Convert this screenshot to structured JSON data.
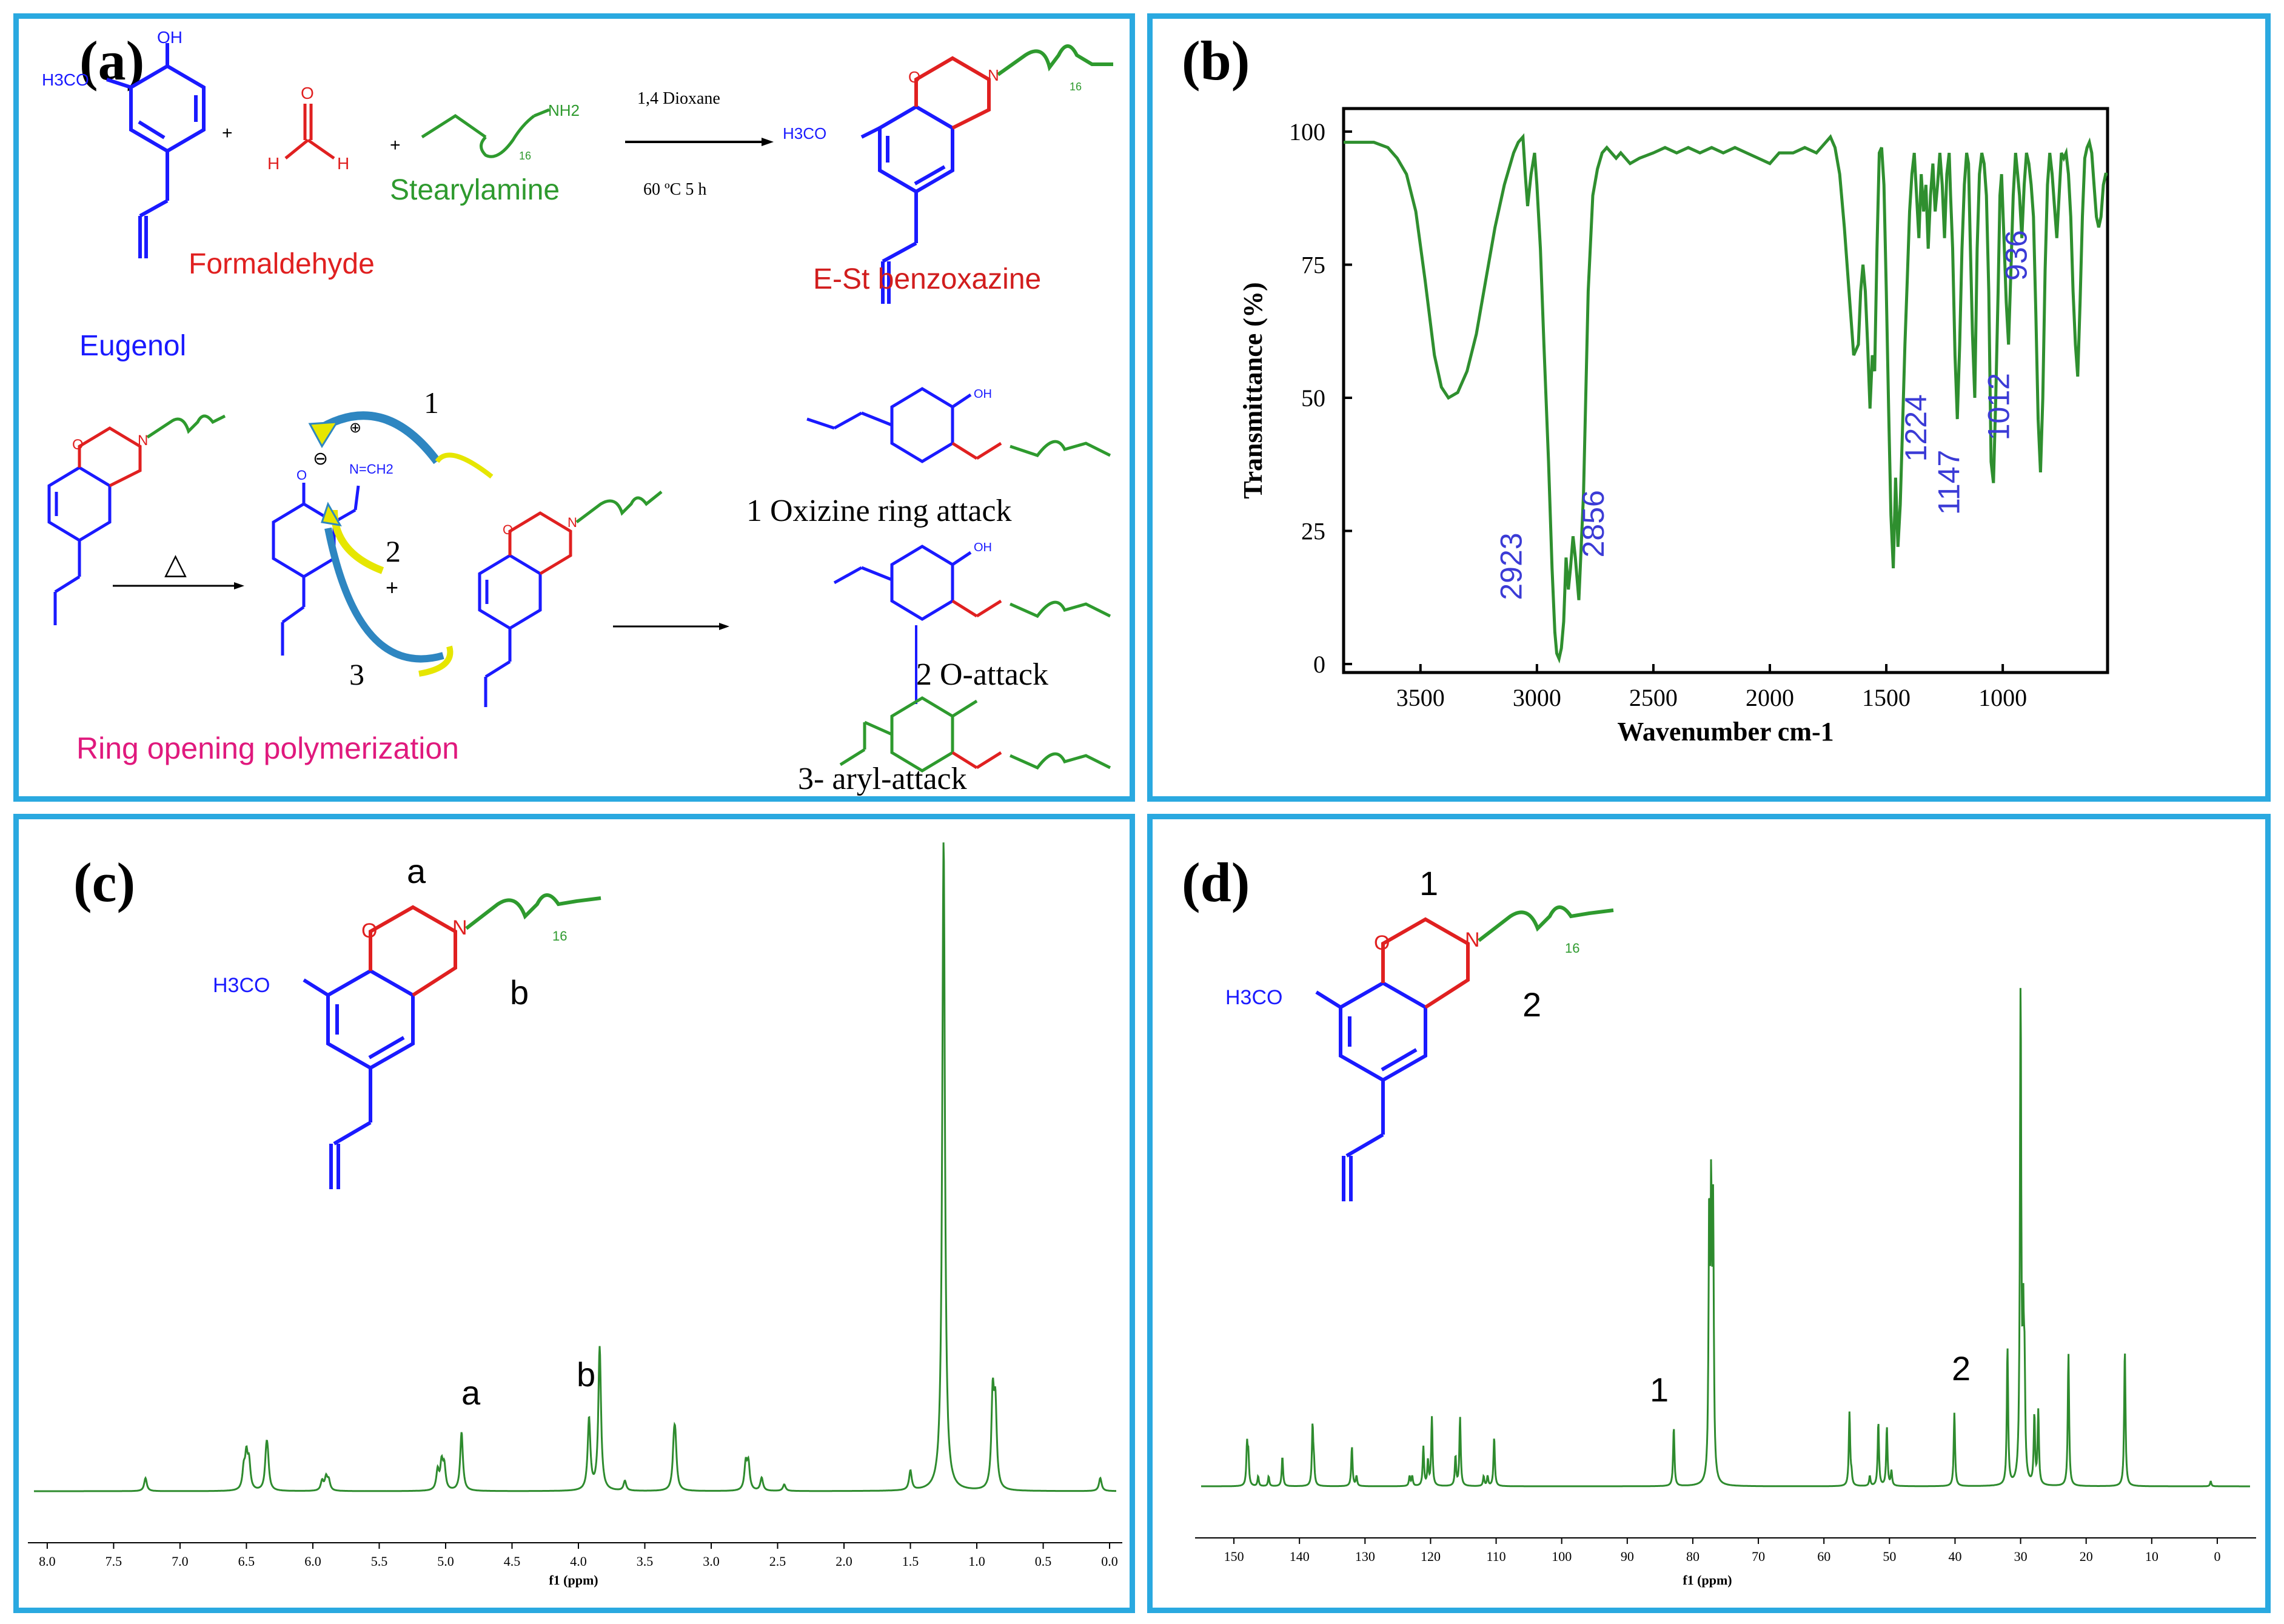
{
  "colors": {
    "border": "#2aa9e0",
    "eugenol": "#1a1aff",
    "formaldehyde": "#e02020",
    "amine": "#2e9a2e",
    "product": "#d11d1d",
    "rop": "#e0197d",
    "nmr": "#2e8b2e",
    "ir": "#2f8f2f",
    "ir_label": "#3b3bd6",
    "arrow_fill": "#e6e600"
  },
  "panels": {
    "a": {
      "label": "(a)",
      "reactants": {
        "eugenol": "Eugenol",
        "formaldehyde": "Formaldehyde",
        "stearylamine": "Stearylamine",
        "oh": "OH",
        "h3co": "H3CO",
        "nh2": "NH2",
        "sub16": "16",
        "h_left": "H",
        "h_right": "H",
        "o": "O",
        "plus1": "+",
        "plus2": "+"
      },
      "conditions": {
        "solvent": "1,4 Dioxane",
        "temp": "60 ºC 5 h"
      },
      "product": "E-St benzoxazine",
      "rop_title": "Ring opening polymerization",
      "heat": "△",
      "arrow_numbers": [
        "1",
        "2",
        "3"
      ],
      "attacks": {
        "one": "1 Oxizine ring attack",
        "two": "2 O-attack",
        "three": "3- aryl-attack"
      },
      "charges": {
        "minus": "⊖",
        "plus": "⊕",
        "plus_sign": "+"
      },
      "atoms": {
        "o": "O",
        "n": "N",
        "oh": "OH",
        "nh": "N",
        "ch2": "N=CH2"
      }
    },
    "b": {
      "label": "(b)",
      "peaks": [
        "2923",
        "2856",
        "1224",
        "1147",
        "1012",
        "936"
      ]
    },
    "c": {
      "label": "(c)",
      "struct": {
        "a": "a",
        "b": "b",
        "o": "O",
        "n": "N",
        "h3co": "H3CO",
        "sub16": "16"
      },
      "peak_labels": [
        "a",
        "b"
      ]
    },
    "d": {
      "label": "(d)",
      "struct": {
        "one": "1",
        "two": "2",
        "o": "O",
        "n": "N",
        "h3co": "H3CO",
        "sub16": "16"
      },
      "peak_labels": [
        "1",
        "2"
      ]
    }
  },
  "chart_data": [
    {
      "type": "line",
      "panel": "b",
      "xlabel": "Wavenumber cm-1",
      "ylabel": "Transmittance (%)",
      "xlim": [
        3830,
        550
      ],
      "ylim": [
        0,
        100
      ],
      "x_reversed": true,
      "xticks": [
        3500,
        3000,
        2500,
        2000,
        1500,
        1000
      ],
      "yticks": [
        0,
        25,
        50,
        75,
        100
      ],
      "series": [
        {
          "x": [
            3830,
            3700,
            3640,
            3600,
            3560,
            3520,
            3480,
            3440,
            3410,
            3380,
            3340,
            3300,
            3260,
            3220,
            3180,
            3140,
            3100,
            3080,
            3060,
            3050,
            3040,
            3025,
            3010,
            3000,
            2985,
            2970,
            2950,
            2935,
            2923,
            2915,
            2905,
            2895,
            2885,
            2875,
            2865,
            2856,
            2845,
            2835,
            2820,
            2800,
            2780,
            2760,
            2740,
            2720,
            2700,
            2680,
            2660,
            2640,
            2620,
            2600,
            2560,
            2500,
            2450,
            2400,
            2350,
            2300,
            2250,
            2200,
            2150,
            2100,
            2050,
            2000,
            1980,
            1960,
            1900,
            1850,
            1800,
            1760,
            1740,
            1720,
            1700,
            1680,
            1660,
            1640,
            1620,
            1610,
            1600,
            1590,
            1580,
            1570,
            1560,
            1550,
            1540,
            1530,
            1520,
            1510,
            1500,
            1490,
            1480,
            1470,
            1460,
            1450,
            1440,
            1430,
            1420,
            1410,
            1400,
            1390,
            1380,
            1370,
            1360,
            1350,
            1340,
            1330,
            1320,
            1310,
            1300,
            1290,
            1280,
            1270,
            1260,
            1250,
            1240,
            1230,
            1224,
            1215,
            1205,
            1195,
            1185,
            1175,
            1165,
            1155,
            1147,
            1140,
            1130,
            1120,
            1110,
            1100,
            1090,
            1080,
            1070,
            1060,
            1050,
            1040,
            1030,
            1020,
            1012,
            1005,
            995,
            985,
            975,
            965,
            955,
            945,
            936,
            928,
            918,
            908,
            898,
            888,
            878,
            868,
            858,
            848,
            838,
            828,
            818,
            808,
            798,
            788,
            778,
            768,
            758,
            748,
            738,
            728,
            718,
            708,
            698,
            688,
            678,
            668,
            658,
            648,
            638,
            628,
            618,
            608,
            598,
            588,
            578,
            568,
            558,
            550
          ],
          "y": [
            98,
            98,
            97,
            95,
            92,
            85,
            72,
            58,
            52,
            50,
            51,
            55,
            62,
            72,
            82,
            90,
            96,
            98,
            99,
            92,
            86,
            92,
            96,
            90,
            78,
            60,
            38,
            18,
            6,
            2,
            1,
            3,
            8,
            20,
            14,
            18,
            24,
            20,
            12,
            32,
            70,
            88,
            93,
            96,
            97,
            96,
            95,
            96,
            95,
            94,
            95,
            96,
            97,
            96,
            97,
            96,
            97,
            96,
            97,
            96,
            95,
            94,
            95,
            96,
            96,
            97,
            96,
            98,
            99,
            97,
            92,
            82,
            70,
            58,
            60,
            70,
            75,
            70,
            60,
            48,
            58,
            55,
            78,
            96,
            97,
            90,
            70,
            48,
            28,
            18,
            35,
            22,
            30,
            45,
            60,
            72,
            85,
            92,
            96,
            88,
            80,
            92,
            85,
            90,
            78,
            88,
            94,
            85,
            90,
            96,
            90,
            80,
            92,
            96,
            88,
            78,
            58,
            46,
            60,
            78,
            90,
            96,
            94,
            80,
            62,
            50,
            78,
            92,
            96,
            94,
            88,
            70,
            38,
            34,
            50,
            70,
            88,
            92,
            80,
            68,
            60,
            74,
            88,
            96,
            92,
            88,
            80,
            90,
            96,
            94,
            90,
            84,
            66,
            46,
            36,
            50,
            74,
            90,
            96,
            92,
            86,
            80,
            88,
            96,
            95,
            96,
            92,
            84,
            70,
            60,
            54,
            68,
            84,
            95,
            97,
            98,
            96,
            90,
            84,
            82,
            84,
            90,
            92,
            92
          ]
        }
      ]
    },
    {
      "type": "line",
      "panel": "c",
      "xlabel": "f1 (ppm)",
      "xlim": [
        8.1,
        -0.05
      ],
      "x_reversed": true,
      "xticks": [
        "8.0",
        "7.5",
        "7.0",
        "6.5",
        "6.0",
        "5.5",
        "5.0",
        "4.5",
        "4.0",
        "3.5",
        "3.0",
        "2.5",
        "2.0",
        "1.5",
        "1.0",
        "0.5",
        "0.0"
      ],
      "peaks": [
        {
          "x": 7.26,
          "h": 0.02
        },
        {
          "x": 6.52,
          "h": 0.03
        },
        {
          "x": 6.5,
          "h": 0.05
        },
        {
          "x": 6.48,
          "h": 0.04
        },
        {
          "x": 6.35,
          "h": 0.05
        },
        {
          "x": 6.34,
          "h": 0.04
        },
        {
          "x": 5.93,
          "h": 0.015
        },
        {
          "x": 5.9,
          "h": 0.02
        },
        {
          "x": 5.88,
          "h": 0.015
        },
        {
          "x": 5.06,
          "h": 0.03
        },
        {
          "x": 5.03,
          "h": 0.04
        },
        {
          "x": 5.01,
          "h": 0.035
        },
        {
          "x": 4.88,
          "h": 0.09
        },
        {
          "x": 3.92,
          "h": 0.11
        },
        {
          "x": 3.84,
          "h": 0.22
        },
        {
          "x": 3.65,
          "h": 0.015
        },
        {
          "x": 3.28,
          "h": 0.06
        },
        {
          "x": 3.27,
          "h": 0.06
        },
        {
          "x": 2.74,
          "h": 0.04
        },
        {
          "x": 2.72,
          "h": 0.04
        },
        {
          "x": 2.62,
          "h": 0.02
        },
        {
          "x": 2.45,
          "h": 0.01
        },
        {
          "x": 1.5,
          "h": 0.03
        },
        {
          "x": 1.25,
          "h": 1.0
        },
        {
          "x": 0.88,
          "h": 0.14
        },
        {
          "x": 0.86,
          "h": 0.12
        },
        {
          "x": 0.07,
          "h": 0.02
        }
      ]
    },
    {
      "type": "line",
      "panel": "d",
      "xlabel": "f1 (ppm)",
      "xlim": [
        155,
        -5
      ],
      "x_reversed": true,
      "xticks": [
        "150",
        "140",
        "130",
        "120",
        "110",
        "100",
        "90",
        "80",
        "70",
        "60",
        "50",
        "40",
        "30",
        "20",
        "10",
        "0"
      ],
      "peaks": [
        {
          "x": 148.0,
          "h": 0.08
        },
        {
          "x": 147.8,
          "h": 0.06
        },
        {
          "x": 146.3,
          "h": 0.02
        },
        {
          "x": 144.7,
          "h": 0.02
        },
        {
          "x": 142.6,
          "h": 0.06
        },
        {
          "x": 138.0,
          "h": 0.12
        },
        {
          "x": 137.8,
          "h": 0.04
        },
        {
          "x": 132.0,
          "h": 0.08
        },
        {
          "x": 131.3,
          "h": 0.02
        },
        {
          "x": 123.2,
          "h": 0.02
        },
        {
          "x": 122.8,
          "h": 0.02
        },
        {
          "x": 121.1,
          "h": 0.08
        },
        {
          "x": 120.4,
          "h": 0.05
        },
        {
          "x": 119.8,
          "h": 0.14
        },
        {
          "x": 116.2,
          "h": 0.06
        },
        {
          "x": 115.5,
          "h": 0.14
        },
        {
          "x": 111.9,
          "h": 0.02
        },
        {
          "x": 111.3,
          "h": 0.02
        },
        {
          "x": 110.3,
          "h": 0.1
        },
        {
          "x": 82.9,
          "h": 0.12
        },
        {
          "x": 77.5,
          "h": 0.52
        },
        {
          "x": 77.2,
          "h": 0.53
        },
        {
          "x": 76.9,
          "h": 0.52
        },
        {
          "x": 56.1,
          "h": 0.15
        },
        {
          "x": 55.8,
          "h": 0.02
        },
        {
          "x": 53.0,
          "h": 0.02
        },
        {
          "x": 51.7,
          "h": 0.13
        },
        {
          "x": 50.4,
          "h": 0.12
        },
        {
          "x": 49.7,
          "h": 0.03
        },
        {
          "x": 40.1,
          "h": 0.15
        },
        {
          "x": 32.0,
          "h": 0.28
        },
        {
          "x": 30.0,
          "h": 1.0
        },
        {
          "x": 29.6,
          "h": 0.28
        },
        {
          "x": 29.4,
          "h": 0.2
        },
        {
          "x": 27.9,
          "h": 0.14
        },
        {
          "x": 27.3,
          "h": 0.15
        },
        {
          "x": 22.7,
          "h": 0.27
        },
        {
          "x": 14.1,
          "h": 0.28
        },
        {
          "x": 1.0,
          "h": 0.01
        }
      ]
    }
  ]
}
